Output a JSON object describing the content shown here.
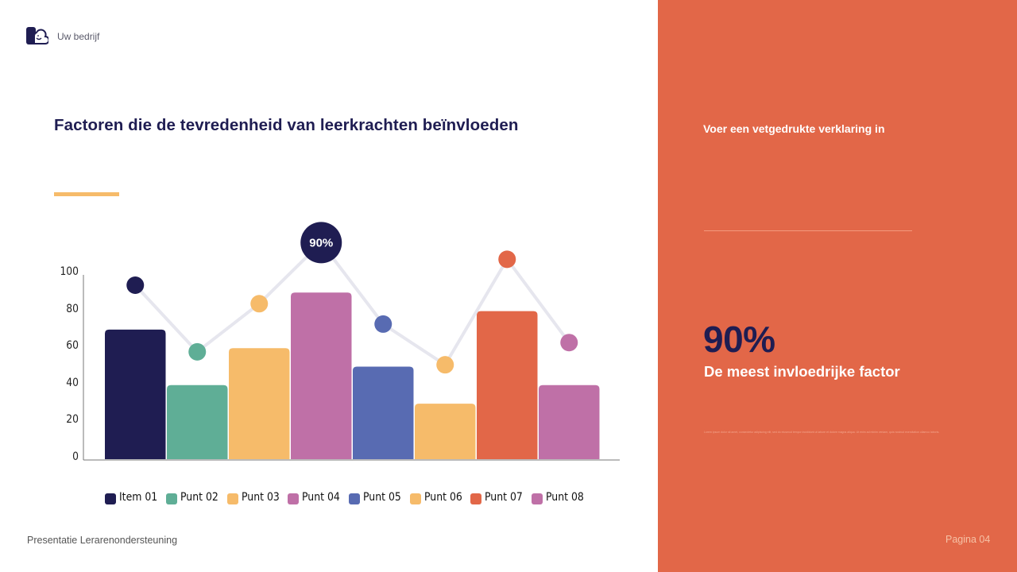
{
  "header": {
    "company": "Uw bedrijf",
    "logo_icon": "cloud-smile-icon"
  },
  "slide": {
    "title": "Factoren die de tevredenheid van leerkrachten beïnvloeden",
    "accent_color": "#f6bb6a"
  },
  "colors": {
    "navy": "#1f1d52",
    "green": "#5fae96",
    "yellow": "#f6bb6a",
    "pink": "#bf70a7",
    "blue": "#586bb2",
    "orange": "#e26748",
    "line": "#e6e6ee",
    "right_panel": "#e26748"
  },
  "chart_data": {
    "type": "bar",
    "title": "Factoren die de tevredenheid van leerkrachten beïnvloeden",
    "xlabel": "",
    "ylabel": "",
    "ylim": [
      0,
      100
    ],
    "yticks": [
      0,
      20,
      40,
      60,
      80,
      100
    ],
    "grid": false,
    "legend_position": "bottom",
    "categories": [
      "Item 01",
      "Punt 02",
      "Punt 03",
      "Punt 04",
      "Punt 05",
      "Punt 06",
      "Punt 07",
      "Punt 08"
    ],
    "colors": [
      "#1f1d52",
      "#5fae96",
      "#f6bb6a",
      "#bf70a7",
      "#586bb2",
      "#f6bb6a",
      "#e26748",
      "#bf70a7"
    ],
    "series": [
      {
        "name": "Bars",
        "type": "bar",
        "values": [
          70,
          40,
          60,
          90,
          50,
          30,
          80,
          40
        ]
      },
      {
        "name": "Line markers",
        "type": "line",
        "values": [
          94,
          58,
          84,
          117,
          73,
          51,
          108,
          63
        ]
      }
    ],
    "annotations": [
      {
        "category": "Punt 04",
        "label": "90%"
      }
    ]
  },
  "right_panel": {
    "heading": "Voer een vetgedrukte verklaring in",
    "big_stat": "90%",
    "stat_label": "De meest invloedrijke factor",
    "tiny_text": "Lorem ipsum dolor sit amet, consectetur adipiscing elit, sed do eiusmod tempor incididunt ut labore et dolore magna aliqua. Ut enim ad minim veniam, quis nostrud exercitation ullamco laboris."
  },
  "footer": {
    "left": "Presentatie Lerarenondersteuning",
    "right": "Pagina 04"
  }
}
